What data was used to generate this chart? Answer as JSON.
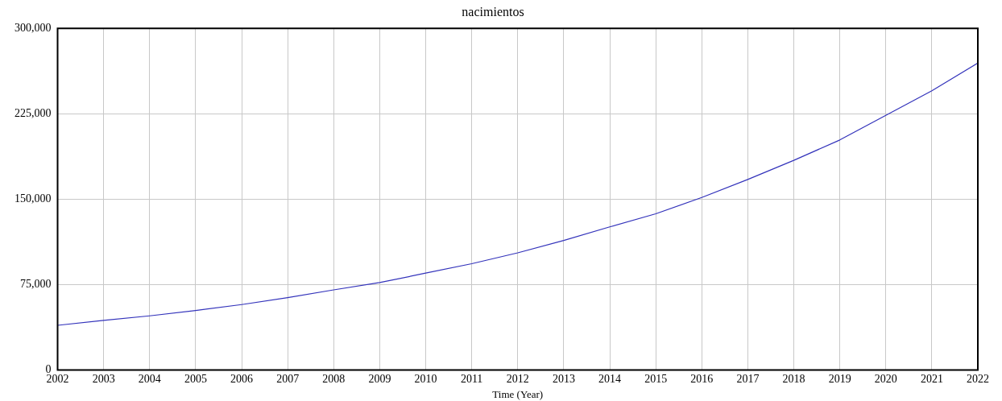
{
  "chart_data": {
    "type": "line",
    "title": "nacimientos",
    "xlabel": "Time (Year)",
    "x": [
      2002,
      2003,
      2004,
      2005,
      2006,
      2007,
      2008,
      2009,
      2010,
      2011,
      2012,
      2013,
      2014,
      2015,
      2016,
      2017,
      2018,
      2019,
      2020,
      2021,
      2022
    ],
    "series": [
      {
        "color": "#3333bb",
        "values": [
          39300,
          43600,
          47600,
          52300,
          57500,
          63600,
          70400,
          76800,
          85100,
          93400,
          102900,
          113800,
          125700,
          137200,
          151500,
          167300,
          184100,
          202000,
          223600,
          245200,
          269600
        ]
      }
    ],
    "xlim": [
      2002,
      2022
    ],
    "xticks": [
      2002,
      2003,
      2004,
      2005,
      2006,
      2007,
      2008,
      2009,
      2010,
      2011,
      2012,
      2013,
      2014,
      2015,
      2016,
      2017,
      2018,
      2019,
      2020,
      2021,
      2022
    ],
    "ylim": [
      0,
      300000
    ],
    "yticks": [
      {
        "value": 0,
        "label": "0"
      },
      {
        "value": 75000,
        "label": "75,000"
      },
      {
        "value": 150000,
        "label": "150,000"
      },
      {
        "value": 225000,
        "label": "225,000"
      },
      {
        "value": 300000,
        "label": "300,000"
      }
    ],
    "grid": true,
    "legend": false,
    "marker": "none",
    "line_style": "solid"
  }
}
